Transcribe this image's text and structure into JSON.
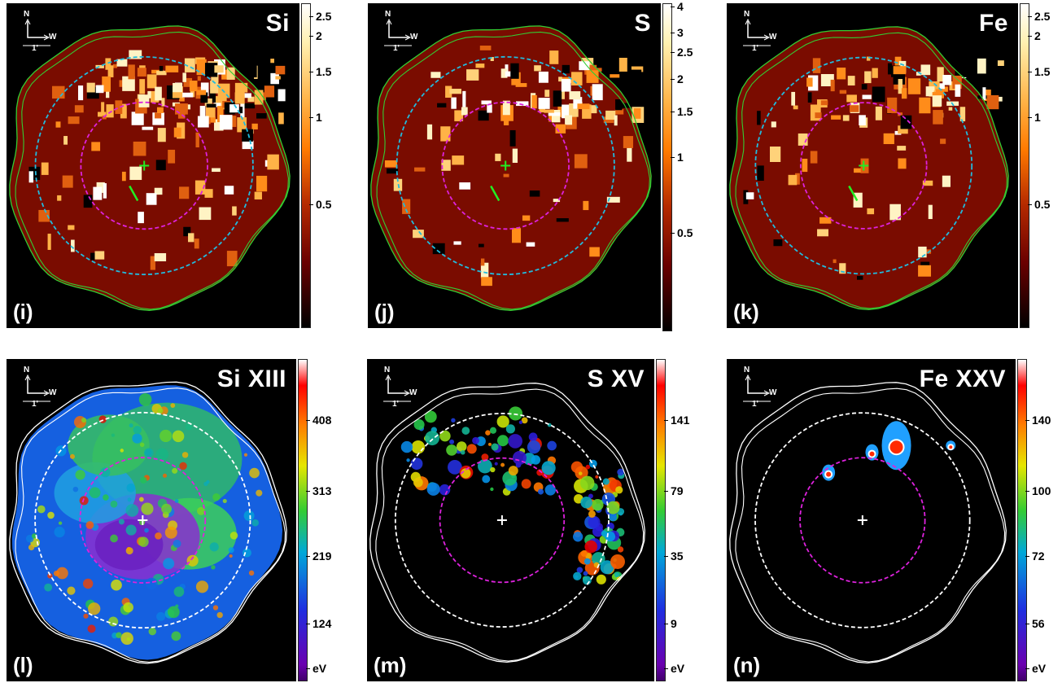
{
  "panels": [
    {
      "label": "(i)",
      "title": "Si",
      "ticks": [
        "2.5",
        "2",
        "1.5",
        "1",
        "0.5"
      ],
      "ticks_frac": [
        0.04,
        0.1,
        0.21,
        0.35,
        0.62
      ],
      "colormap": "heat"
    },
    {
      "label": "(j)",
      "title": "S",
      "ticks": [
        "4",
        "3",
        "2.5",
        "2",
        "1.5",
        "1",
        "0.5"
      ],
      "ticks_frac": [
        0.01,
        0.09,
        0.15,
        0.23,
        0.33,
        0.47,
        0.7
      ],
      "colormap": "heat"
    },
    {
      "label": "(k)",
      "title": "Fe",
      "ticks": [
        "2.5",
        "2",
        "1.5",
        "1",
        "0.5"
      ],
      "ticks_frac": [
        0.04,
        0.1,
        0.21,
        0.35,
        0.62
      ],
      "colormap": "heat"
    },
    {
      "label": "(l)",
      "title": "Si XIII",
      "ticks": [
        "408",
        "313",
        "219",
        "124",
        "eV"
      ],
      "ticks_frac": [
        0.19,
        0.41,
        0.61,
        0.82,
        0.96
      ],
      "colormap": "rainbow"
    },
    {
      "label": "(m)",
      "title": "S XV",
      "ticks": [
        "141",
        "79",
        "35",
        "9",
        "eV"
      ],
      "ticks_frac": [
        0.19,
        0.41,
        0.61,
        0.82,
        0.96
      ],
      "colormap": "rainbow"
    },
    {
      "label": "(n)",
      "title": "Fe XXV",
      "ticks": [
        "140",
        "100",
        "72",
        "56",
        "eV"
      ],
      "ticks_frac": [
        0.19,
        0.41,
        0.61,
        0.82,
        0.96
      ],
      "colormap": "rainbow"
    }
  ],
  "compass": {
    "north": "N",
    "west": "W",
    "scale": "1'"
  },
  "colors": {
    "remnant_fill": "#7a0c00",
    "outer_contour_top": "#33cc33",
    "outer_contour_bottom": "#ffffff",
    "outer_circle_top": "#22bbdd",
    "outer_circle_bottom": "#ffffff",
    "inner_circle": "#dd22dd",
    "center_marker_top": "#22ee22",
    "center_marker_bottom": "#ffffff"
  },
  "icons": [
    "compass-icon",
    "center-cross-icon",
    "arrow-icon"
  ]
}
